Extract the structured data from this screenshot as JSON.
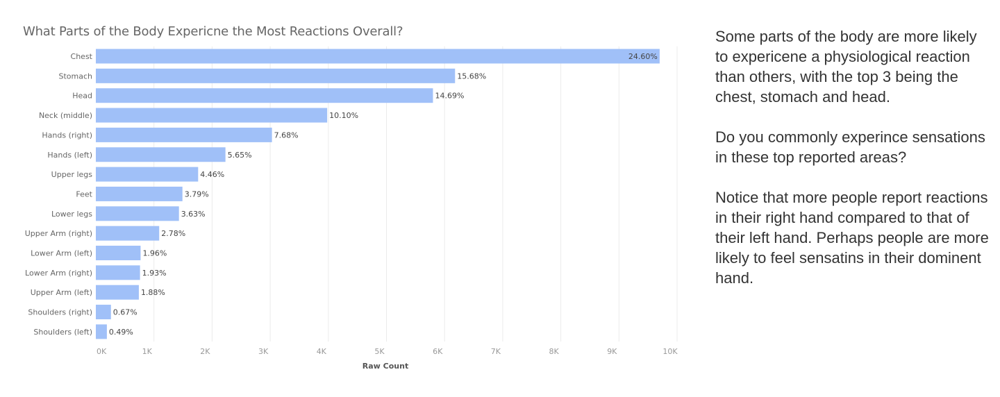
{
  "chart_data": {
    "type": "bar",
    "orientation": "horizontal",
    "title": "What Parts of the Body Expericne the Most Reactions Overall?",
    "xlabel": "Raw Count",
    "ylabel": "",
    "xlim": [
      0,
      10000
    ],
    "x_ticks": [
      "0K",
      "1K",
      "2K",
      "3K",
      "4K",
      "5K",
      "6K",
      "7K",
      "8K",
      "9K",
      "10K"
    ],
    "categories": [
      "Chest",
      "Stomach",
      "Head",
      "Neck (middle)",
      "Hands (right)",
      "Hands (left)",
      "Upper legs",
      "Feet",
      "Lower legs",
      "Upper Arm (right)",
      "Lower Arm (left)",
      "Lower Arm (right)",
      "Upper Arm (left)",
      "Shoulders (right)",
      "Shoulders (left)"
    ],
    "values": [
      9700,
      6180,
      5800,
      3980,
      3030,
      2230,
      1760,
      1490,
      1430,
      1090,
      770,
      760,
      740,
      260,
      190
    ],
    "labels": [
      "24.60%",
      "15.68%",
      "14.69%",
      "10.10%",
      "7.68%",
      "5.65%",
      "4.46%",
      "3.79%",
      "3.63%",
      "2.78%",
      "1.96%",
      "1.93%",
      "1.88%",
      "0.67%",
      "0.49%"
    ],
    "bar_color": "#a0c0f8",
    "grid": "vertical gridlines",
    "legend": "none"
  },
  "commentary": {
    "paragraph_1": "Some parts of the body are more likely to expericene a physiological reaction than others, with the top 3 being the chest, stomach and head.",
    "paragraph_2": "Do you commonly experince sensations in these top reported areas?",
    "paragraph_3": "Notice that more people report reactions in their right hand compared to that of their left hand. Perhaps people are more likely to feel sensatins in their dominent hand."
  }
}
